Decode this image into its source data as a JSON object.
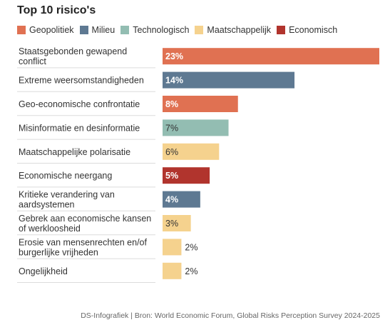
{
  "chart_data": {
    "type": "bar",
    "orientation": "horizontal",
    "title": "Top 10 risico's",
    "legend_placement": "top-left",
    "legend": [
      {
        "name": "Geopolitiek",
        "color": "#e07152"
      },
      {
        "name": "Milieu",
        "color": "#5e7992"
      },
      {
        "name": "Technologisch",
        "color": "#93bdb2"
      },
      {
        "name": "Maatschappelijk",
        "color": "#f5d28e"
      },
      {
        "name": "Economisch",
        "color": "#b1342d"
      }
    ],
    "categories": [
      [
        "Staatsgebonden gewapend",
        "conflict"
      ],
      [
        "Extreme weersomstandigheden"
      ],
      [
        "Geo-economische confrontatie"
      ],
      [
        "Misinformatie en desinformatie"
      ],
      [
        "Maatschappelijke polarisatie"
      ],
      [
        "Economische neergang"
      ],
      [
        "Kritieke verandering van",
        "aardsystemen"
      ],
      [
        "Gebrek aan economische kansen",
        "of werkloosheid"
      ],
      [
        "Erosie van mensenrechten en/of",
        "burgerlijke vrijheden"
      ],
      [
        "Ongelijkheid"
      ]
    ],
    "values": [
      23,
      14,
      8,
      7,
      6,
      5,
      4,
      3,
      2,
      2
    ],
    "value_labels": [
      "23%",
      "14%",
      "8%",
      "7%",
      "6%",
      "5%",
      "4%",
      "3%",
      "2%",
      "2%"
    ],
    "groups": [
      "Geopolitiek",
      "Milieu",
      "Geopolitiek",
      "Technologisch",
      "Maatschappelijk",
      "Economisch",
      "Milieu",
      "Maatschappelijk",
      "Maatschappelijk",
      "Maatschappelijk"
    ],
    "xlim": [
      0,
      23
    ],
    "grid": false
  },
  "source": "DS-Infografiek | Bron: World Economic Forum, Global Risks Perception Survey 2024-2025"
}
